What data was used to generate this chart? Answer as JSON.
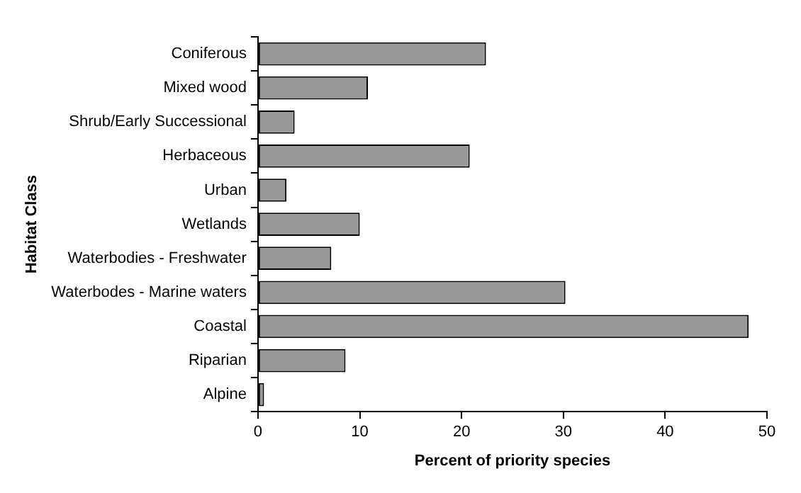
{
  "chart_data": {
    "type": "bar",
    "orientation": "horizontal",
    "xlabel": "Percent of priority species",
    "ylabel": "Habitat Class",
    "categories": [
      "Coniferous",
      "Mixed wood",
      "Shrub/Early Successional",
      "Herbaceous",
      "Urban",
      "Wetlands",
      "Waterbodies - Freshwater",
      "Waterbodes - Marine waters",
      "Coastal",
      "Riparian",
      "Alpine"
    ],
    "values": [
      22.4,
      10.8,
      3.6,
      20.8,
      2.8,
      10.0,
      7.2,
      30.2,
      48.2,
      8.6,
      0.6
    ],
    "color": "#999999",
    "xlim": [
      0,
      50
    ],
    "xticks": [
      0,
      10,
      20,
      30,
      40,
      50
    ],
    "grid": false,
    "legend": false
  }
}
